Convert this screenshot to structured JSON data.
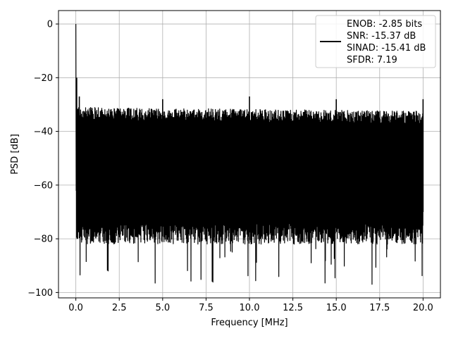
{
  "chart_data": {
    "type": "line",
    "title": "",
    "xlabel": "Frequency [MHz]",
    "ylabel": "PSD [dB]",
    "xlim": [
      -1.0,
      21.0
    ],
    "ylim": [
      -102,
      5
    ],
    "x_ticks": [
      0.0,
      2.5,
      5.0,
      7.5,
      10.0,
      12.5,
      15.0,
      17.5,
      20.0
    ],
    "x_tick_labels": [
      "0.0",
      "2.5",
      "5.0",
      "7.5",
      "10.0",
      "12.5",
      "15.0",
      "17.5",
      "20.0"
    ],
    "y_ticks": [
      0,
      -20,
      -40,
      -60,
      -80,
      -100
    ],
    "y_tick_labels": [
      "0",
      "−20",
      "−40",
      "−60",
      "−80",
      "−100"
    ],
    "grid": true,
    "legend_position": "top-right",
    "legend_lines": [
      "ENOB: -2.85 bits",
      "SNR: -15.37 dB",
      "SINAD: -15.41 dB",
      "SFDR: 7.19"
    ],
    "series": [
      {
        "color": "#000000",
        "noise_floor_upper_db": -34,
        "noise_floor_lower_db": -70,
        "noise_deep_dip_min_db": -97,
        "peaks": [
          {
            "x": 0.0,
            "y": 0
          },
          {
            "x": 0.05,
            "y": -20
          },
          {
            "x": 0.2,
            "y": -27
          },
          {
            "x": 5.0,
            "y": -28
          },
          {
            "x": 10.0,
            "y": -27
          },
          {
            "x": 15.0,
            "y": -28
          },
          {
            "x": 20.0,
            "y": -28
          }
        ]
      }
    ]
  }
}
